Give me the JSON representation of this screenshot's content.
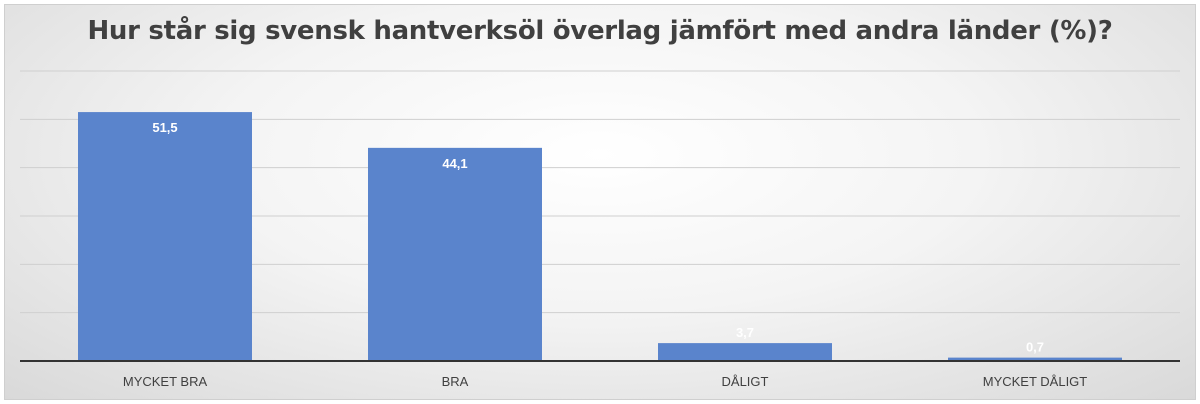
{
  "chart_data": {
    "type": "bar",
    "title": "Hur står sig svensk hantverksöl överlag jämfört med andra länder (%)?",
    "categories": [
      "MYCKET BRA",
      "BRA",
      "DÅLIGT",
      "MYCKET DÅLIGT"
    ],
    "values": [
      51.5,
      44.1,
      3.7,
      0.7
    ],
    "data_labels": [
      "51,5",
      "44,1",
      "3,7",
      "0,7"
    ],
    "xlabel": "",
    "ylabel": "",
    "ylim": [
      0,
      60
    ],
    "grid": true,
    "legend": "none",
    "bar_color": "#5a84cc",
    "grid_color": "#cfcfcf",
    "axis_color": "#333333"
  }
}
